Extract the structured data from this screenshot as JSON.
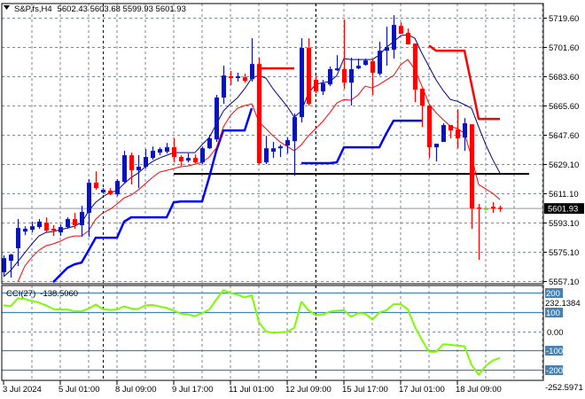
{
  "header": {
    "symbol": "S&P,fs,H4",
    "ohlc_text": "5602.43 5603.68 5599.93 5601.93",
    "dropdown_icon": "triangle-down-icon"
  },
  "colors": {
    "bull": "#0a14b4",
    "bear": "#ff0000",
    "doji": "#66cc33",
    "fast_ma": "#000080",
    "slow_ma": "#ff0000",
    "support_step": "#0000ff",
    "resistance_step": "#ff0000",
    "level_line": "#000000",
    "cci_line": "#7cfc00",
    "cci_levels": "#4682b4",
    "grid": "#7d8a98"
  },
  "chart_data": [
    {
      "type": "candlestick",
      "title": "S&P,fs,H4",
      "ylim": [
        5555.5,
        5728.4
      ],
      "yticks": [
        5719.6,
        5701.6,
        5683.6,
        5665.6,
        5647.6,
        5629.1,
        5611.1,
        5593.1,
        5575.1,
        5557.1
      ],
      "ytick_labels": [
        "5719.60",
        "5701.60",
        "5683.60",
        "5665.60",
        "5647.60",
        "5629.10",
        "5611.10",
        "5593.10",
        "5575.10",
        "5557.10"
      ],
      "current_price": 5601.93,
      "current_price_label": "5601.93",
      "grid": true,
      "xtick_labels": [
        "3 Jul 2024",
        "5 Jul 01:00",
        "8 Jul 09:00",
        "9 Jul 17:00",
        "11 Jul 01:00",
        "12 Jul 09:00",
        "15 Jul 17:00",
        "17 Jul 01:00",
        "18 Jul 09:00"
      ],
      "ohlc": [
        [
          5562.6,
          5573.0,
          5559.9,
          5571.3
        ],
        [
          5569.7,
          5574.0,
          5559.3,
          5573.5
        ],
        [
          5577.4,
          5595.4,
          5566.4,
          5589.9
        ],
        [
          5587.7,
          5591.0,
          5585.5,
          5589.4
        ],
        [
          5588.8,
          5593.8,
          5587.2,
          5591.0
        ],
        [
          5590.5,
          5595.4,
          5589.4,
          5593.8
        ],
        [
          5593.2,
          5596.5,
          5587.2,
          5588.3
        ],
        [
          5589.4,
          5591.6,
          5585.0,
          5588.3
        ],
        [
          5587.2,
          5592.1,
          5585.0,
          5590.5
        ],
        [
          5590.5,
          5596.5,
          5589.4,
          5595.4
        ],
        [
          5595.4,
          5599.2,
          5589.4,
          5591.6
        ],
        [
          5591.6,
          5603.6,
          5584.5,
          5599.8
        ],
        [
          5599.2,
          5620.0,
          5584.5,
          5617.8
        ],
        [
          5617.8,
          5624.9,
          5613.5,
          5614.5
        ],
        [
          5611.8,
          5614.5,
          5611.3,
          5613.5
        ],
        [
          5612.9,
          5614.5,
          5610.2,
          5610.7
        ],
        [
          5610.7,
          5620.0,
          5609.6,
          5618.9
        ],
        [
          5618.4,
          5637.5,
          5617.3,
          5634.8
        ],
        [
          5634.8,
          5636.4,
          5616.8,
          5625.5
        ],
        [
          5625.5,
          5634.8,
          5614.5,
          5627.7
        ],
        [
          5627.7,
          5638.6,
          5626.6,
          5633.7
        ],
        [
          5633.1,
          5640.2,
          5632.0,
          5637.5
        ],
        [
          5636.4,
          5639.7,
          5634.8,
          5638.6
        ],
        [
          5637.0,
          5642.4,
          5635.9,
          5639.7
        ],
        [
          5639.7,
          5645.2,
          5630.4,
          5633.7
        ],
        [
          5633.7,
          5634.8,
          5628.2,
          5631.0
        ],
        [
          5631.5,
          5635.9,
          5630.4,
          5633.1
        ],
        [
          5633.1,
          5635.3,
          5629.9,
          5630.4
        ],
        [
          5630.4,
          5640.2,
          5629.3,
          5639.1
        ],
        [
          5639.1,
          5647.4,
          5638.6,
          5645.2
        ],
        [
          5644.6,
          5672.0,
          5643.0,
          5670.4
        ],
        [
          5670.4,
          5690.0,
          5666.5,
          5684.0
        ],
        [
          5683.5,
          5686.8,
          5678.0,
          5682.4
        ],
        [
          5682.4,
          5685.7,
          5680.2,
          5683.5
        ],
        [
          5682.9,
          5685.1,
          5679.6,
          5680.7
        ],
        [
          5681.8,
          5707.0,
          5680.2,
          5691.1
        ],
        [
          5691.1,
          5695.0,
          5629.3,
          5629.9
        ],
        [
          5630.4,
          5646.8,
          5629.3,
          5639.1
        ],
        [
          5637.0,
          5643.0,
          5633.1,
          5639.1
        ],
        [
          5639.1,
          5641.3,
          5633.7,
          5640.2
        ],
        [
          5640.8,
          5645.7,
          5635.9,
          5644.1
        ],
        [
          5643.5,
          5660.5,
          5622.2,
          5658.3
        ],
        [
          5658.3,
          5707.0,
          5655.0,
          5701.0
        ],
        [
          5701.0,
          5707.0,
          5665.4,
          5666.5
        ],
        [
          5681.3,
          5684.0,
          5673.1,
          5674.2
        ],
        [
          5674.2,
          5681.3,
          5672.0,
          5679.1
        ],
        [
          5678.5,
          5689.5,
          5677.4,
          5687.9
        ],
        [
          5687.3,
          5696.6,
          5686.8,
          5688.4
        ],
        [
          5687.9,
          5718.5,
          5675.8,
          5679.6
        ],
        [
          5679.6,
          5695.0,
          5665.4,
          5687.9
        ],
        [
          5688.4,
          5694.4,
          5687.9,
          5690.0
        ],
        [
          5690.6,
          5694.4,
          5690.0,
          5693.3
        ],
        [
          5692.8,
          5694.4,
          5672.0,
          5685.7
        ],
        [
          5685.1,
          5704.8,
          5684.0,
          5699.3
        ],
        [
          5699.3,
          5714.1,
          5690.0,
          5701.5
        ],
        [
          5699.9,
          5721.2,
          5694.4,
          5715.2
        ],
        [
          5714.6,
          5716.8,
          5709.7,
          5709.7
        ],
        [
          5710.3,
          5713.0,
          5703.2,
          5703.2
        ],
        [
          5703.7,
          5703.7,
          5667.6,
          5675.3
        ],
        [
          5675.8,
          5675.8,
          5652.3,
          5665.4
        ],
        [
          5665.4,
          5665.4,
          5633.1,
          5639.7
        ],
        [
          5639.7,
          5641.9,
          5631.0,
          5641.9
        ],
        [
          5643.0,
          5654.5,
          5643.0,
          5653.4
        ],
        [
          5653.4,
          5653.4,
          5645.2,
          5650.1
        ],
        [
          5650.6,
          5663.2,
          5639.1,
          5645.2
        ],
        [
          5645.7,
          5657.7,
          5637.5,
          5654.5
        ],
        [
          5653.9,
          5653.9,
          5589.4,
          5601.9
        ],
        [
          5602.5,
          5604.7,
          5570.3,
          5601.9
        ],
        [
          5601.9,
          5602.5,
          5601.4,
          5601.9
        ],
        [
          5603.0,
          5605.8,
          5599.2,
          5601.9
        ],
        [
          5602.43,
          5603.68,
          5599.93,
          5601.93
        ]
      ],
      "fast_ma": [
        5559.8,
        5563.7,
        5569.1,
        5574.6,
        5580.1,
        5585.0,
        5587.2,
        5587.7,
        5588.8,
        5589.9,
        5591.0,
        5593.2,
        5600.3,
        5605.8,
        5609.1,
        5611.8,
        5612.9,
        5617.3,
        5621.1,
        5623.8,
        5627.7,
        5630.9,
        5633.1,
        5634.8,
        5636.4,
        5636.4,
        5636.4,
        5636.4,
        5641.3,
        5645.7,
        5653.9,
        5662.1,
        5666.5,
        5670.3,
        5675.8,
        5682.4,
        5684.0,
        5682.4,
        5675.8,
        5670.3,
        5664.9,
        5658.3,
        5662.1,
        5673.1,
        5678.5,
        5679.6,
        5680.2,
        5684.0,
        5694.4,
        5693.9,
        5693.9,
        5693.9,
        5693.9,
        5696.6,
        5701.5,
        5704.8,
        5708.6,
        5709.2,
        5707.0,
        5697.7,
        5689.5,
        5681.3,
        5674.7,
        5669.2,
        5668.1,
        5666.0,
        5663.8,
        5652.3,
        5641.3,
        5632.0,
        5623.8
      ],
      "slow_ma": [
        null,
        null,
        5556.5,
        5566.4,
        5571.9,
        5576.2,
        5579.0,
        5580.1,
        5581.7,
        5583.9,
        5585.0,
        5585.0,
        5588.3,
        5595.4,
        5599.2,
        5601.4,
        5604.7,
        5608.5,
        5610.2,
        5613.4,
        5617.3,
        5621.1,
        5624.4,
        5625.5,
        5626.6,
        5627.7,
        5628.2,
        5629.3,
        5630.4,
        5633.7,
        5639.2,
        5652.3,
        5659.4,
        5663.8,
        5665.4,
        5666.5,
        5655.6,
        5651.2,
        5646.8,
        5643.0,
        5640.2,
        5637.5,
        5641.3,
        5646.8,
        5651.2,
        5655.6,
        5661.0,
        5667.0,
        5669.2,
        5668.7,
        5672.0,
        5677.4,
        5676.3,
        5678.5,
        5681.3,
        5684.0,
        5690.6,
        5693.9,
        5687.8,
        5677.4,
        5666.5,
        5661.0,
        5656.7,
        5652.8,
        5651.2,
        5648.4,
        5633.7,
        5616.7,
        5614.0,
        5611.3,
        5607.4
      ],
      "support_step": [
        null,
        null,
        null,
        null,
        null,
        null,
        null,
        5556.5,
        5560.9,
        5565.3,
        5567.5,
        5568.6,
        5576.2,
        5583.9,
        5583.9,
        5583.9,
        5583.9,
        5593.8,
        5596.5,
        5596.5,
        5596.5,
        5596.5,
        5596.5,
        5596.5,
        5605.8,
        5606.3,
        5606.3,
        5606.3,
        5606.3,
        5621.1,
        5637.5,
        5650.1,
        5650.1,
        5650.1,
        5650.1,
        5663.8,
        null,
        null,
        null,
        null,
        null,
        null,
        5629.9,
        5629.9,
        5629.9,
        5629.9,
        5629.9,
        5630.4,
        5639.7,
        5639.7,
        5639.7,
        5639.7,
        5639.7,
        5639.7,
        5648.4,
        5656.1,
        5656.1,
        5656.1,
        5656.1,
        5656.1,
        null,
        null,
        null,
        null,
        null,
        null,
        null,
        null,
        null,
        null,
        null
      ],
      "resistance_step": [
        null,
        null,
        null,
        null,
        null,
        null,
        null,
        null,
        null,
        null,
        null,
        null,
        null,
        null,
        null,
        null,
        null,
        null,
        null,
        null,
        null,
        null,
        null,
        null,
        null,
        null,
        null,
        null,
        null,
        null,
        null,
        null,
        null,
        null,
        null,
        null,
        5688.4,
        5688.4,
        5688.4,
        5688.4,
        5688.4,
        5688.4,
        null,
        null,
        null,
        null,
        null,
        null,
        null,
        null,
        null,
        null,
        null,
        null,
        null,
        null,
        null,
        null,
        null,
        null,
        5702.6,
        5699.3,
        5699.3,
        5699.3,
        5699.3,
        5699.3,
        5678.5,
        5657.2,
        5657.2,
        5657.2,
        5657.2
      ],
      "horizontal_level": 5623.3
    },
    {
      "type": "line",
      "title": "CCI(27)",
      "value_label": "-138.5060",
      "max_label": "232.1384",
      "min_label": "-252.5971",
      "ylim": [
        -252.5971,
        232.1384
      ],
      "levels": [
        200,
        100,
        -100,
        -200
      ],
      "level_labels": [
        "200",
        "100",
        "-100",
        "-200"
      ],
      "zero_label": "0.00",
      "values": [
        135,
        129,
        170,
        167,
        157,
        148,
        134,
        115,
        112,
        112,
        103,
        103,
        117,
        138,
        115,
        110,
        112,
        129,
        117,
        115,
        134,
        136,
        128,
        121,
        106,
        91,
        86,
        78,
        94,
        112,
        163,
        213,
        198,
        189,
        175,
        186,
        47,
        -1,
        -9,
        -6,
        -3,
        17,
        152,
        109,
        83,
        86,
        101,
        106,
        109,
        75,
        94,
        91,
        60,
        97,
        109,
        140,
        140,
        114,
        24,
        -45,
        -106,
        -106,
        -68,
        -71,
        -75,
        -78,
        -175,
        -226,
        -180,
        -152,
        -138.5
      ]
    }
  ]
}
